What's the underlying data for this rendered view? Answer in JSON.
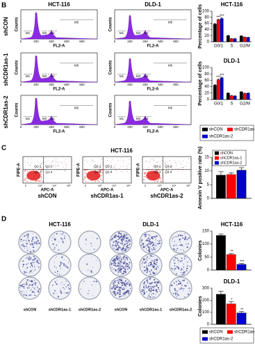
{
  "panels": {
    "B": {
      "label": "B",
      "flow": {
        "columns": [
          "HCT-116",
          "DLD-1"
        ],
        "rows": [
          "shCON",
          "shCDR1as-1",
          "shCDR1as-2"
        ],
        "x_label": "FL2-A",
        "y_label": "Counts",
        "xticks": [
          "0",
          "200",
          "400",
          "600",
          "800"
        ],
        "gates": [
          "M1",
          "M3",
          "M4",
          "M5"
        ]
      }
    },
    "C": {
      "label": "C",
      "title": "HCT-116",
      "y_label": "FIPE-A",
      "x_label": "APC-A",
      "xticks": [
        "0",
        "10³",
        "10⁴",
        "10⁵"
      ],
      "plots": [
        {
          "name": "shCON",
          "quadrants": [
            "Q1-1",
            "Q1-2",
            "Q1-3",
            "Q1-4"
          ]
        },
        {
          "name": "shCDR1as-1",
          "quadrants": [
            "Q2-1",
            "Q2-2",
            "Q2-3",
            "Q2-4"
          ]
        },
        {
          "name": "shCDR1as-2",
          "quadrants": [
            "Q3-1",
            "Q3-2",
            "Q3-3",
            "Q3-4"
          ]
        }
      ]
    },
    "D": {
      "label": "D",
      "columns": [
        {
          "title": "HCT-116",
          "dishes": [
            "shCON",
            "shCDR1as-1",
            "shCDR1as-2"
          ]
        },
        {
          "title": "DLD-1",
          "dishes": [
            "shCON",
            "shCDR1as-1",
            "shCDR1as-2"
          ]
        }
      ]
    }
  },
  "chart_data": [
    {
      "type": "bar",
      "title": "HCT-116",
      "y_label": "Percentage of cells",
      "categories": [
        "G0/1",
        "S",
        "G2/M"
      ],
      "ylim": [
        0,
        100
      ],
      "yticks": [
        0,
        20,
        40,
        60,
        80,
        100
      ],
      "series": [
        {
          "name": "shCON",
          "color": "#000000",
          "values": [
            58,
            20,
            19
          ],
          "errors": [
            2,
            1,
            1
          ],
          "significance": [
            null,
            null,
            null
          ]
        },
        {
          "name": "shCDR1as-1",
          "color": "#ff0000",
          "values": [
            72,
            10,
            15
          ],
          "errors": [
            2,
            1,
            1
          ],
          "significance": [
            "***",
            null,
            null
          ]
        },
        {
          "name": "shCDR1as-2",
          "color": "#0000cc",
          "values": [
            76,
            10,
            14
          ],
          "errors": [
            2,
            1,
            1
          ],
          "significance": [
            "***",
            null,
            null
          ]
        }
      ]
    },
    {
      "type": "bar",
      "title": "DLD-1",
      "y_label": "Percentage of cells",
      "categories": [
        "G0/1",
        "S",
        "G2/M"
      ],
      "ylim": [
        0,
        100
      ],
      "yticks": [
        0,
        20,
        40,
        60,
        80,
        100
      ],
      "legend": "below",
      "series": [
        {
          "name": "shCON",
          "color": "#000000",
          "values": [
            45,
            20,
            24
          ],
          "errors": [
            2,
            1,
            1
          ],
          "significance": [
            null,
            null,
            null
          ]
        },
        {
          "name": "shCDR1as-1",
          "color": "#ff0000",
          "values": [
            62,
            12,
            19
          ],
          "errors": [
            2,
            1,
            1
          ],
          "significance": [
            "***",
            null,
            null
          ]
        },
        {
          "name": "shCDR1as-2",
          "color": "#0000cc",
          "values": [
            68,
            11,
            20
          ],
          "errors": [
            2,
            1,
            1
          ],
          "significance": [
            "***",
            null,
            null
          ]
        }
      ]
    },
    {
      "type": "bar",
      "y_label": "Annexin V positive rate (%)",
      "ylim": [
        0,
        15
      ],
      "yticks": [
        0,
        5,
        10,
        15
      ],
      "legend": "upper left",
      "series": [
        {
          "name": "shCON",
          "color": "#000000",
          "values": [
            8.5
          ],
          "errors": [
            1.2
          ]
        },
        {
          "name": "shCDR1as-1",
          "color": "#ff0000",
          "values": [
            8.7
          ],
          "errors": [
            0.6
          ]
        },
        {
          "name": "shCDR1as-2",
          "color": "#0000cc",
          "values": [
            10.3
          ],
          "errors": [
            0.9
          ]
        }
      ]
    },
    {
      "type": "bar",
      "title": "HCT-116",
      "y_label": "Colonies",
      "ylim": [
        0,
        150
      ],
      "yticks": [
        0,
        50,
        100,
        150
      ],
      "series": [
        {
          "name": "shCON",
          "color": "#000000",
          "values": [
            133
          ],
          "errors": [
            6
          ],
          "significance": [
            null
          ]
        },
        {
          "name": "shCDR1as-1",
          "color": "#ff0000",
          "values": [
            60
          ],
          "errors": [
            4
          ],
          "significance": [
            "**"
          ]
        },
        {
          "name": "shCDR1as-2",
          "color": "#0000cc",
          "values": [
            22
          ],
          "errors": [
            3
          ],
          "significance": [
            "***"
          ]
        }
      ]
    },
    {
      "type": "bar",
      "title": "DLD-1",
      "y_label": "Colonies",
      "ylim": [
        0,
        300
      ],
      "yticks": [
        0,
        100,
        200,
        300
      ],
      "legend": "below",
      "series": [
        {
          "name": "shCON",
          "color": "#000000",
          "values": [
            250
          ],
          "errors": [
            25
          ],
          "significance": [
            null
          ]
        },
        {
          "name": "shCDR1as-1",
          "color": "#ff0000",
          "values": [
            170
          ],
          "errors": [
            18
          ],
          "significance": [
            "*"
          ]
        },
        {
          "name": "shCDR1as-2",
          "color": "#0000cc",
          "values": [
            95
          ],
          "errors": [
            12
          ],
          "significance": [
            "**"
          ]
        }
      ]
    }
  ]
}
